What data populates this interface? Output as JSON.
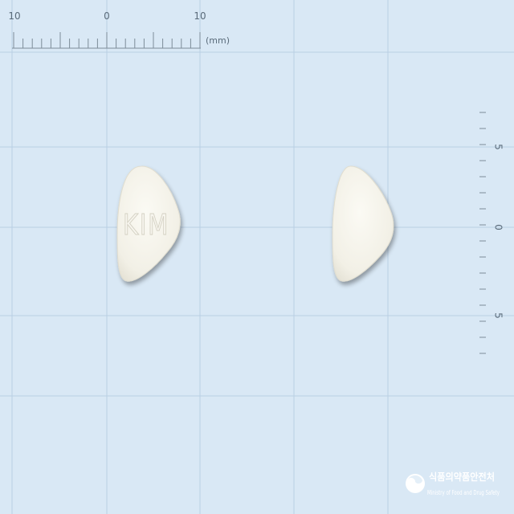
{
  "ruler_top": {
    "labels": [
      "10",
      "0",
      "10"
    ],
    "unit": "(mm)"
  },
  "ruler_right": {
    "labels": [
      "5",
      "0",
      "5"
    ]
  },
  "pill_front": {
    "imprint": "KIM"
  },
  "logo": {
    "name_ko": "식품의약품안전처",
    "name_en": "Ministry of Food and Drug Safety"
  },
  "colors": {
    "background": "#d9e8f5",
    "grid": "#b9cfe3",
    "pill": "#f6f4ec"
  }
}
